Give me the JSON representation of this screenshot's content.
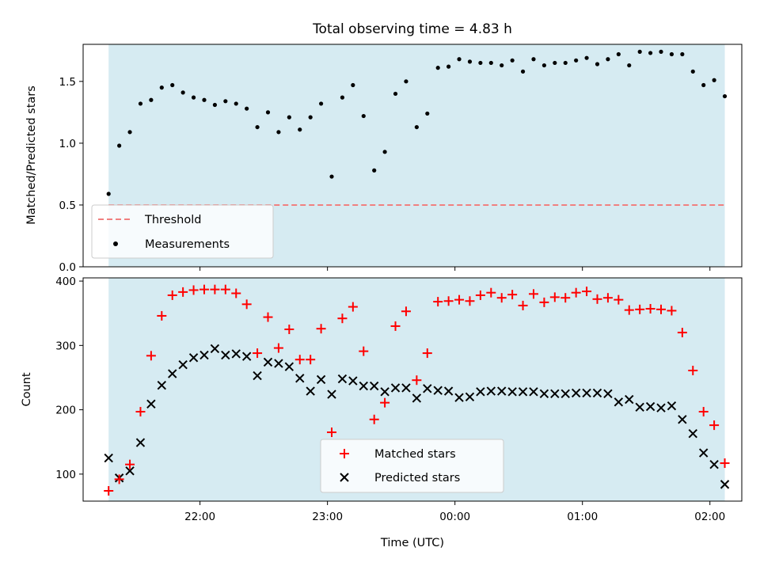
{
  "title": "Total observing time = 4.83 h",
  "colors": {
    "band": "#add8e6",
    "threshold": "#f08080",
    "matched": "#ff0000",
    "predicted": "#000000",
    "measurement": "#000000"
  },
  "chart_data": [
    {
      "type": "scatter",
      "ylabel": "Matched/Predicted stars",
      "ylim": [
        0,
        1.8
      ],
      "yticks": [
        0.0,
        0.5,
        1.0,
        1.5
      ],
      "ytick_labels": [
        "0.0",
        "0.5",
        "1.0",
        "1.5"
      ],
      "shaded_span": [
        "21:17",
        "02:07"
      ],
      "threshold": 0.5,
      "legend": {
        "location": "lower left",
        "entries": [
          "Threshold",
          "Measurements"
        ]
      },
      "series": [
        {
          "name": "Measurements",
          "x": [
            "21:17",
            "21:22",
            "21:27",
            "21:32",
            "21:37",
            "21:42",
            "21:47",
            "21:52",
            "21:57",
            "22:02",
            "22:07",
            "22:12",
            "22:17",
            "22:22",
            "22:27",
            "22:32",
            "22:37",
            "22:42",
            "22:47",
            "22:52",
            "22:57",
            "23:02",
            "23:07",
            "23:12",
            "23:17",
            "23:22",
            "23:27",
            "23:32",
            "23:37",
            "23:42",
            "23:47",
            "23:52",
            "23:57",
            "00:02",
            "00:07",
            "00:12",
            "00:17",
            "00:22",
            "00:27",
            "00:32",
            "00:37",
            "00:42",
            "00:47",
            "00:52",
            "00:57",
            "01:02",
            "01:07",
            "01:12",
            "01:17",
            "01:22",
            "01:27",
            "01:32",
            "01:37",
            "01:42",
            "01:47",
            "01:52",
            "01:57",
            "02:02",
            "02:07"
          ],
          "y": [
            0.59,
            0.98,
            1.09,
            1.32,
            1.35,
            1.45,
            1.47,
            1.41,
            1.37,
            1.35,
            1.31,
            1.34,
            1.32,
            1.28,
            1.13,
            1.25,
            1.09,
            1.21,
            1.11,
            1.21,
            1.32,
            0.73,
            1.37,
            1.47,
            1.22,
            0.78,
            0.93,
            1.4,
            1.5,
            1.13,
            1.24,
            1.61,
            1.62,
            1.68,
            1.66,
            1.65,
            1.65,
            1.63,
            1.67,
            1.58,
            1.68,
            1.63,
            1.65,
            1.65,
            1.67,
            1.69,
            1.64,
            1.68,
            1.72,
            1.63,
            1.74,
            1.73,
            1.74,
            1.72,
            1.72,
            1.58,
            1.47,
            1.51,
            1.38
          ]
        }
      ]
    },
    {
      "type": "scatter",
      "xlabel": "Time (UTC)",
      "ylabel": "Count",
      "ylim": [
        58,
        405
      ],
      "yticks": [
        100,
        200,
        300,
        400
      ],
      "ytick_labels": [
        "100",
        "200",
        "300",
        "400"
      ],
      "xlim": [
        "21:05",
        "02:15"
      ],
      "xticks": [
        "22:00",
        "23:00",
        "00:00",
        "01:00",
        "02:00"
      ],
      "xtick_labels": [
        "22:00",
        "23:00",
        "00:00",
        "01:00",
        "02:00"
      ],
      "shaded_span": [
        "21:17",
        "02:07"
      ],
      "legend": {
        "location": "lower center",
        "entries": [
          "Matched stars",
          "Predicted stars"
        ]
      },
      "series": [
        {
          "name": "Matched stars",
          "x": [
            "21:17",
            "21:22",
            "21:27",
            "21:32",
            "21:37",
            "21:42",
            "21:47",
            "21:52",
            "21:57",
            "22:02",
            "22:07",
            "22:12",
            "22:17",
            "22:22",
            "22:27",
            "22:32",
            "22:37",
            "22:42",
            "22:47",
            "22:52",
            "22:57",
            "23:02",
            "23:07",
            "23:12",
            "23:17",
            "23:22",
            "23:27",
            "23:32",
            "23:37",
            "23:42",
            "23:47",
            "23:52",
            "23:57",
            "00:02",
            "00:07",
            "00:12",
            "00:17",
            "00:22",
            "00:27",
            "00:32",
            "00:37",
            "00:42",
            "00:47",
            "00:52",
            "00:57",
            "01:02",
            "01:07",
            "01:12",
            "01:17",
            "01:22",
            "01:27",
            "01:32",
            "01:37",
            "01:42",
            "01:47",
            "01:52",
            "01:57",
            "02:02",
            "02:07"
          ],
          "y": [
            74,
            92,
            115,
            197,
            284,
            346,
            378,
            383,
            386,
            387,
            387,
            387,
            381,
            364,
            288,
            344,
            296,
            325,
            278,
            278,
            326,
            165,
            342,
            360,
            291,
            185,
            211,
            330,
            353,
            246,
            288,
            368,
            369,
            371,
            369,
            378,
            382,
            374,
            379,
            362,
            380,
            367,
            375,
            374,
            382,
            384,
            372,
            374,
            371,
            355,
            356,
            357,
            356,
            354,
            320,
            261,
            197,
            176,
            117
          ]
        },
        {
          "name": "Predicted stars",
          "x": [
            "21:17",
            "21:22",
            "21:27",
            "21:32",
            "21:37",
            "21:42",
            "21:47",
            "21:52",
            "21:57",
            "22:02",
            "22:07",
            "22:12",
            "22:17",
            "22:22",
            "22:27",
            "22:32",
            "22:37",
            "22:42",
            "22:47",
            "22:52",
            "22:57",
            "23:02",
            "23:07",
            "23:12",
            "23:17",
            "23:22",
            "23:27",
            "23:32",
            "23:37",
            "23:42",
            "23:47",
            "23:52",
            "23:57",
            "00:02",
            "00:07",
            "00:12",
            "00:17",
            "00:22",
            "00:27",
            "00:32",
            "00:37",
            "00:42",
            "00:47",
            "00:52",
            "00:57",
            "01:02",
            "01:07",
            "01:12",
            "01:17",
            "01:22",
            "01:27",
            "01:32",
            "01:37",
            "01:42",
            "01:47",
            "01:52",
            "01:57",
            "02:02",
            "02:07"
          ],
          "y": [
            125,
            94,
            105,
            149,
            209,
            238,
            256,
            270,
            281,
            285,
            295,
            285,
            287,
            283,
            253,
            274,
            272,
            267,
            249,
            229,
            247,
            224,
            248,
            245,
            237,
            237,
            228,
            234,
            234,
            218,
            233,
            230,
            229,
            219,
            220,
            228,
            229,
            229,
            228,
            228,
            228,
            225,
            225,
            225,
            226,
            226,
            226,
            225,
            212,
            216,
            204,
            205,
            203,
            206,
            185,
            163,
            133,
            115,
            84
          ]
        }
      ]
    }
  ]
}
